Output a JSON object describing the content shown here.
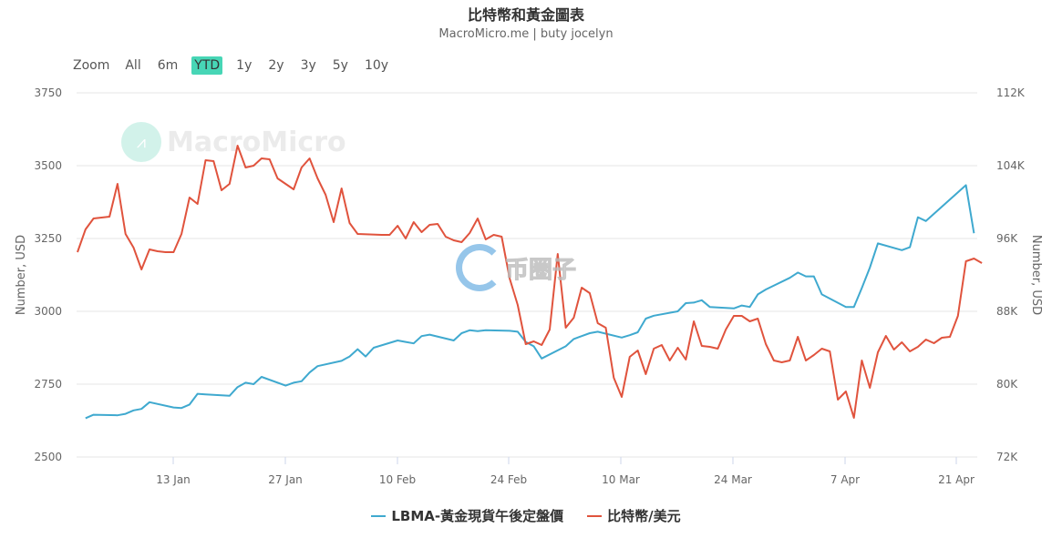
{
  "header": {
    "title": "比特幣和黃金圖表",
    "subtitle": "MacroMicro.me | buty jocelyn"
  },
  "range_selector": {
    "label": "Zoom",
    "buttons": [
      {
        "label": "All",
        "active": false
      },
      {
        "label": "6m",
        "active": false
      },
      {
        "label": "YTD",
        "active": true
      },
      {
        "label": "1y",
        "active": false
      },
      {
        "label": "2y",
        "active": false
      },
      {
        "label": "3y",
        "active": false
      },
      {
        "label": "5y",
        "active": false
      },
      {
        "label": "10y",
        "active": false
      }
    ]
  },
  "watermarks": {
    "macromicro": "MacroMicro",
    "coin": "币圈子"
  },
  "legend": {
    "items": [
      {
        "label": "LBMA-黃金現貨午後定盤價",
        "color": "#3fa9cf"
      },
      {
        "label": "比特幣/美元",
        "color": "#e0533d"
      }
    ]
  },
  "chart_data": {
    "type": "line",
    "title": "比特幣和黃金圖表",
    "subtitle": "MacroMicro.me | buty jocelyn",
    "xlabel": "",
    "ylabel_left": "Number, USD",
    "ylabel_right": "Number, USD",
    "x_ticks": [
      "13 Jan",
      "27 Jan",
      "10 Feb",
      "24 Feb",
      "10 Mar",
      "24 Mar",
      "7 Apr",
      "21 Apr"
    ],
    "y_left_ticks": [
      "2500",
      "2750",
      "3000",
      "3250",
      "3500",
      "3750"
    ],
    "y_left_range": [
      2500,
      3750
    ],
    "y_right_ticks": [
      "72K",
      "80K",
      "88K",
      "96K",
      "104K",
      "112K"
    ],
    "y_right_range": [
      72000,
      112000
    ],
    "grid": true,
    "legend_position": "bottom",
    "series": [
      {
        "name": "LBMA-黃金現貨午後定盤價",
        "axis": "left",
        "color": "#3fa9cf",
        "points": [
          [
            "2025-01-02",
            2633
          ],
          [
            "2025-01-03",
            2645
          ],
          [
            "2025-01-06",
            2643
          ],
          [
            "2025-01-07",
            2648
          ],
          [
            "2025-01-08",
            2660
          ],
          [
            "2025-01-09",
            2665
          ],
          [
            "2025-01-10",
            2688
          ],
          [
            "2025-01-13",
            2670
          ],
          [
            "2025-01-14",
            2668
          ],
          [
            "2025-01-15",
            2680
          ],
          [
            "2025-01-16",
            2717
          ],
          [
            "2025-01-17",
            2715
          ],
          [
            "2025-01-20",
            2710
          ],
          [
            "2025-01-21",
            2740
          ],
          [
            "2025-01-22",
            2755
          ],
          [
            "2025-01-23",
            2750
          ],
          [
            "2025-01-24",
            2775
          ],
          [
            "2025-01-27",
            2745
          ],
          [
            "2025-01-28",
            2755
          ],
          [
            "2025-01-29",
            2760
          ],
          [
            "2025-01-30",
            2790
          ],
          [
            "2025-01-31",
            2812
          ],
          [
            "2025-02-03",
            2830
          ],
          [
            "2025-02-04",
            2845
          ],
          [
            "2025-02-05",
            2870
          ],
          [
            "2025-02-06",
            2845
          ],
          [
            "2025-02-07",
            2875
          ],
          [
            "2025-02-10",
            2900
          ],
          [
            "2025-02-11",
            2895
          ],
          [
            "2025-02-12",
            2890
          ],
          [
            "2025-02-13",
            2915
          ],
          [
            "2025-02-14",
            2920
          ],
          [
            "2025-02-17",
            2900
          ],
          [
            "2025-02-18",
            2925
          ],
          [
            "2025-02-19",
            2935
          ],
          [
            "2025-02-20",
            2932
          ],
          [
            "2025-02-21",
            2935
          ],
          [
            "2025-02-24",
            2933
          ],
          [
            "2025-02-25",
            2930
          ],
          [
            "2025-02-26",
            2895
          ],
          [
            "2025-02-27",
            2880
          ],
          [
            "2025-02-28",
            2838
          ],
          [
            "2025-03-03",
            2880
          ],
          [
            "2025-03-04",
            2905
          ],
          [
            "2025-03-05",
            2915
          ],
          [
            "2025-03-06",
            2925
          ],
          [
            "2025-03-07",
            2930
          ],
          [
            "2025-03-10",
            2910
          ],
          [
            "2025-03-11",
            2918
          ],
          [
            "2025-03-12",
            2928
          ],
          [
            "2025-03-13",
            2975
          ],
          [
            "2025-03-14",
            2985
          ],
          [
            "2025-03-17",
            3000
          ],
          [
            "2025-03-18",
            3028
          ],
          [
            "2025-03-19",
            3030
          ],
          [
            "2025-03-20",
            3038
          ],
          [
            "2025-03-21",
            3015
          ],
          [
            "2025-03-24",
            3010
          ],
          [
            "2025-03-25",
            3020
          ],
          [
            "2025-03-26",
            3015
          ],
          [
            "2025-03-27",
            3058
          ],
          [
            "2025-03-28",
            3075
          ],
          [
            "2025-03-31",
            3115
          ],
          [
            "2025-04-01",
            3133
          ],
          [
            "2025-04-02",
            3120
          ],
          [
            "2025-04-03",
            3120
          ],
          [
            "2025-04-04",
            3058
          ],
          [
            "2025-04-07",
            3015
          ],
          [
            "2025-04-08",
            3015
          ],
          [
            "2025-04-09",
            3080
          ],
          [
            "2025-04-10",
            3150
          ],
          [
            "2025-04-11",
            3233
          ],
          [
            "2025-04-14",
            3210
          ],
          [
            "2025-04-15",
            3220
          ],
          [
            "2025-04-16",
            3323
          ],
          [
            "2025-04-17",
            3310
          ],
          [
            "2025-04-22",
            3433
          ],
          [
            "2025-04-23",
            3268
          ]
        ]
      },
      {
        "name": "比特幣/美元",
        "axis": "right",
        "color": "#e0533d",
        "points": [
          [
            "2025-01-01",
            94500
          ],
          [
            "2025-01-02",
            97000
          ],
          [
            "2025-01-03",
            98200
          ],
          [
            "2025-01-05",
            98400
          ],
          [
            "2025-01-06",
            102000
          ],
          [
            "2025-01-07",
            96500
          ],
          [
            "2025-01-08",
            95000
          ],
          [
            "2025-01-09",
            92600
          ],
          [
            "2025-01-10",
            94800
          ],
          [
            "2025-01-11",
            94600
          ],
          [
            "2025-01-12",
            94500
          ],
          [
            "2025-01-13",
            94500
          ],
          [
            "2025-01-14",
            96500
          ],
          [
            "2025-01-15",
            100500
          ],
          [
            "2025-01-16",
            99800
          ],
          [
            "2025-01-17",
            104600
          ],
          [
            "2025-01-18",
            104500
          ],
          [
            "2025-01-19",
            101300
          ],
          [
            "2025-01-20",
            102000
          ],
          [
            "2025-01-21",
            106200
          ],
          [
            "2025-01-22",
            103800
          ],
          [
            "2025-01-23",
            104000
          ],
          [
            "2025-01-24",
            104800
          ],
          [
            "2025-01-25",
            104700
          ],
          [
            "2025-01-26",
            102600
          ],
          [
            "2025-01-27",
            102000
          ],
          [
            "2025-01-28",
            101400
          ],
          [
            "2025-01-29",
            103800
          ],
          [
            "2025-01-30",
            104800
          ],
          [
            "2025-01-31",
            102600
          ],
          [
            "2025-02-01",
            100800
          ],
          [
            "2025-02-02",
            97800
          ],
          [
            "2025-02-03",
            101500
          ],
          [
            "2025-02-04",
            97700
          ],
          [
            "2025-02-05",
            96500
          ],
          [
            "2025-02-08",
            96400
          ],
          [
            "2025-02-09",
            96400
          ],
          [
            "2025-02-10",
            97400
          ],
          [
            "2025-02-11",
            96000
          ],
          [
            "2025-02-12",
            97800
          ],
          [
            "2025-02-13",
            96700
          ],
          [
            "2025-02-14",
            97500
          ],
          [
            "2025-02-15",
            97600
          ],
          [
            "2025-02-16",
            96200
          ],
          [
            "2025-02-17",
            95800
          ],
          [
            "2025-02-18",
            95600
          ],
          [
            "2025-02-19",
            96600
          ],
          [
            "2025-02-20",
            98200
          ],
          [
            "2025-02-21",
            95900
          ],
          [
            "2025-02-22",
            96400
          ],
          [
            "2025-02-23",
            96200
          ],
          [
            "2025-02-24",
            91600
          ],
          [
            "2025-02-25",
            88700
          ],
          [
            "2025-02-26",
            84400
          ],
          [
            "2025-02-27",
            84700
          ],
          [
            "2025-02-28",
            84300
          ],
          [
            "2025-03-01",
            86000
          ],
          [
            "2025-03-02",
            94300
          ],
          [
            "2025-03-03",
            86200
          ],
          [
            "2025-03-04",
            87300
          ],
          [
            "2025-03-05",
            90600
          ],
          [
            "2025-03-06",
            90000
          ],
          [
            "2025-03-07",
            86700
          ],
          [
            "2025-03-08",
            86200
          ],
          [
            "2025-03-09",
            80700
          ],
          [
            "2025-03-10",
            78600
          ],
          [
            "2025-03-11",
            83000
          ],
          [
            "2025-03-12",
            83700
          ],
          [
            "2025-03-13",
            81100
          ],
          [
            "2025-03-14",
            83900
          ],
          [
            "2025-03-15",
            84300
          ],
          [
            "2025-03-16",
            82600
          ],
          [
            "2025-03-17",
            84000
          ],
          [
            "2025-03-18",
            82700
          ],
          [
            "2025-03-19",
            86900
          ],
          [
            "2025-03-20",
            84200
          ],
          [
            "2025-03-21",
            84100
          ],
          [
            "2025-03-22",
            83900
          ],
          [
            "2025-03-23",
            86000
          ],
          [
            "2025-03-24",
            87500
          ],
          [
            "2025-03-25",
            87500
          ],
          [
            "2025-03-26",
            86900
          ],
          [
            "2025-03-27",
            87200
          ],
          [
            "2025-03-28",
            84400
          ],
          [
            "2025-03-29",
            82600
          ],
          [
            "2025-03-30",
            82400
          ],
          [
            "2025-03-31",
            82600
          ],
          [
            "2025-04-01",
            85200
          ],
          [
            "2025-04-02",
            82600
          ],
          [
            "2025-04-03",
            83200
          ],
          [
            "2025-04-04",
            83900
          ],
          [
            "2025-04-05",
            83600
          ],
          [
            "2025-04-06",
            78300
          ],
          [
            "2025-04-07",
            79200
          ],
          [
            "2025-04-08",
            76300
          ],
          [
            "2025-04-09",
            82600
          ],
          [
            "2025-04-10",
            79600
          ],
          [
            "2025-04-11",
            83500
          ],
          [
            "2025-04-12",
            85300
          ],
          [
            "2025-04-13",
            83800
          ],
          [
            "2025-04-14",
            84600
          ],
          [
            "2025-04-15",
            83600
          ],
          [
            "2025-04-16",
            84100
          ],
          [
            "2025-04-17",
            84900
          ],
          [
            "2025-04-18",
            84500
          ],
          [
            "2025-04-19",
            85100
          ],
          [
            "2025-04-20",
            85200
          ],
          [
            "2025-04-21",
            87500
          ],
          [
            "2025-04-22",
            93500
          ],
          [
            "2025-04-23",
            93800
          ],
          [
            "2025-04-24",
            93300
          ]
        ]
      }
    ]
  }
}
